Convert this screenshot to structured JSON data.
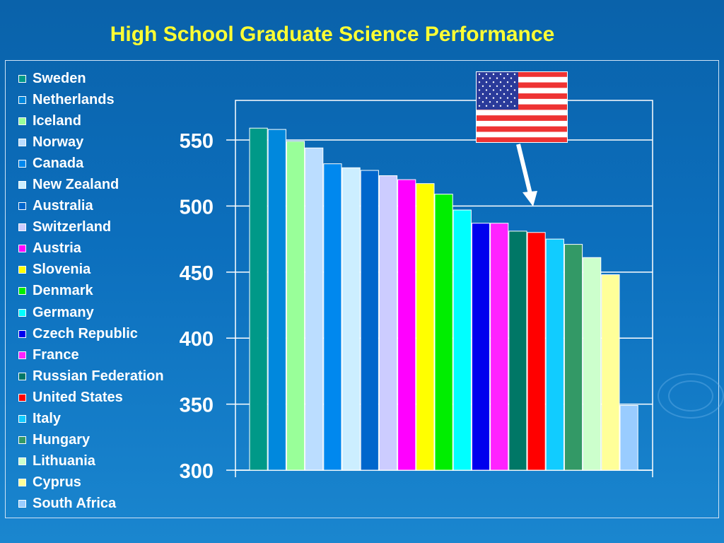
{
  "title": "High School Graduate Science Performance",
  "chart_data": {
    "type": "bar",
    "title": "High School Graduate Science Performance",
    "categories": [
      "Sweden",
      "Netherlands",
      "Iceland",
      "Norway",
      "Canada",
      "New Zealand",
      "Australia",
      "Switzerland",
      "Austria",
      "Slovenia",
      "Denmark",
      "Germany",
      "Czech Republic",
      "France",
      "Russian Federation",
      "United States",
      "Italy",
      "Hungary",
      "Lithuania",
      "Cyprus",
      "South Africa"
    ],
    "values": [
      559,
      558,
      549,
      544,
      532,
      529,
      527,
      523,
      520,
      517,
      509,
      497,
      487,
      487,
      481,
      480,
      475,
      471,
      461,
      448,
      349
    ],
    "colors": [
      "#009988",
      "#0088dd",
      "#99ff99",
      "#bbddff",
      "#0088ee",
      "#cceeff",
      "#0066cc",
      "#ccccff",
      "#ff00ff",
      "#ffff00",
      "#00ee00",
      "#00ffff",
      "#0000ee",
      "#ff22ff",
      "#007766",
      "#ff0000",
      "#11ccff",
      "#339966",
      "#ccffcc",
      "#ffff99",
      "#99ccff"
    ],
    "yticks": [
      300,
      350,
      400,
      450,
      500,
      550
    ],
    "ylim": [
      300,
      580
    ],
    "grid": true,
    "legend_position": "left",
    "highlight": "United States",
    "xlabel": "",
    "ylabel": ""
  }
}
